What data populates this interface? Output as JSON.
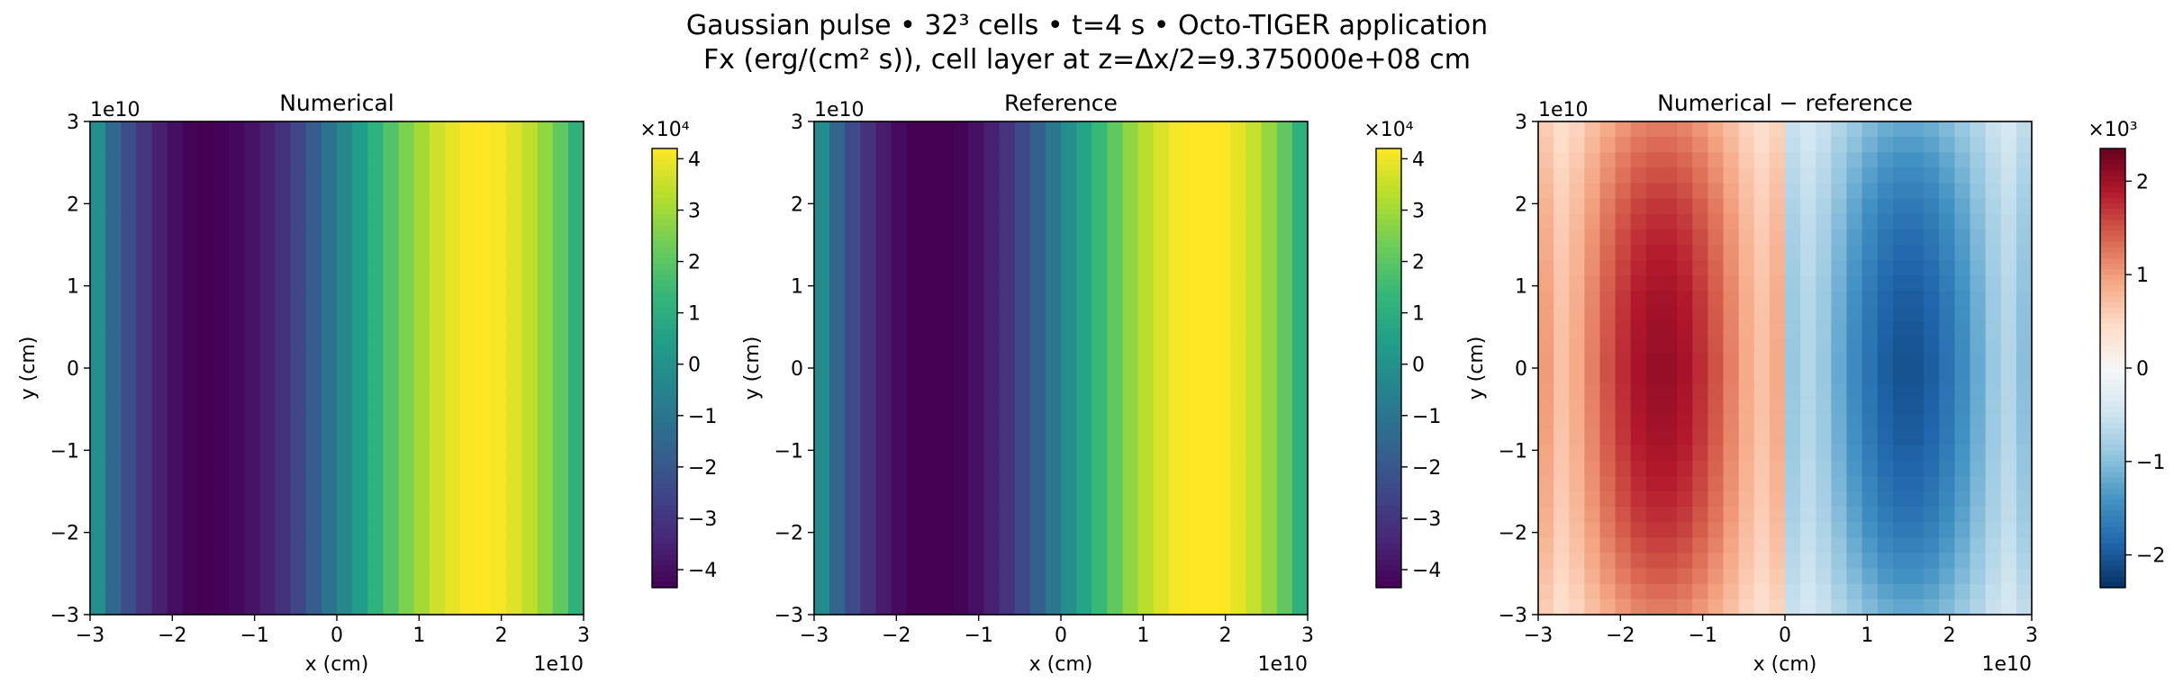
{
  "figure": {
    "title_line1": "Gaussian pulse • 32³ cells • t=4 s • Octo-TIGER application",
    "title_line2": "Fx (erg/(cm² s)), cell layer at z=Δx/2=9.375000e+08 cm"
  },
  "chart_data": [
    {
      "type": "heatmap",
      "title": "Numerical",
      "xlabel": "x (cm)",
      "ylabel": "y (cm)",
      "x_offset_label": "1e10",
      "y_offset_label": "1e10",
      "xlim": [
        -3,
        3
      ],
      "ylim": [
        -3,
        3
      ],
      "x_ticks": [
        -3,
        -2,
        -1,
        0,
        1,
        2,
        3
      ],
      "y_ticks": [
        -3,
        -2,
        -1,
        0,
        1,
        2,
        3
      ],
      "x_tick_labels": [
        "−3",
        "−2",
        "−1",
        "0",
        "1",
        "2",
        "3"
      ],
      "y_tick_labels": [
        "−3",
        "−2",
        "−1",
        "0",
        "1",
        "2",
        "3"
      ],
      "grid": "32x32",
      "colormap": "viridis",
      "colorbar": {
        "range": [
          -4.35,
          4.2
        ],
        "ticks": [
          -4,
          -3,
          -2,
          -1,
          0,
          1,
          2,
          3,
          4
        ],
        "tick_labels": [
          "−4",
          "−3",
          "−2",
          "−1",
          "0",
          "1",
          "2",
          "3",
          "4"
        ],
        "scale_label": "×10⁴"
      },
      "column_values": [
        -0.1,
        -1.5,
        -2.3,
        -3.0,
        -3.6,
        -4.0,
        -4.25,
        -4.35,
        -4.3,
        -4.15,
        -3.9,
        -3.55,
        -3.1,
        -2.5,
        -1.85,
        -1.1,
        -0.35,
        0.4,
        1.15,
        1.85,
        2.5,
        3.05,
        3.55,
        3.9,
        4.15,
        4.2,
        4.1,
        3.8,
        3.4,
        2.8,
        2.1,
        1.1
      ]
    },
    {
      "type": "heatmap",
      "title": "Reference",
      "xlabel": "x (cm)",
      "ylabel": "y (cm)",
      "x_offset_label": "1e10",
      "y_offset_label": "1e10",
      "xlim": [
        -3,
        3
      ],
      "ylim": [
        -3,
        3
      ],
      "x_ticks": [
        -3,
        -2,
        -1,
        0,
        1,
        2,
        3
      ],
      "y_ticks": [
        -3,
        -2,
        -1,
        0,
        1,
        2,
        3
      ],
      "x_tick_labels": [
        "−3",
        "−2",
        "−1",
        "0",
        "1",
        "2",
        "3"
      ],
      "y_tick_labels": [
        "−3",
        "−2",
        "−1",
        "0",
        "1",
        "2",
        "3"
      ],
      "grid": "32x32",
      "colormap": "viridis",
      "colorbar": {
        "range": [
          -4.35,
          4.2
        ],
        "ticks": [
          -4,
          -3,
          -2,
          -1,
          0,
          1,
          2,
          3,
          4
        ],
        "tick_labels": [
          "−4",
          "−3",
          "−2",
          "−1",
          "0",
          "1",
          "2",
          "3",
          "4"
        ],
        "scale_label": "×10⁴"
      },
      "column_values": [
        -0.2,
        -1.6,
        -2.4,
        -3.1,
        -3.7,
        -4.1,
        -4.35,
        -4.45,
        -4.4,
        -4.25,
        -3.95,
        -3.55,
        -3.05,
        -2.45,
        -1.75,
        -0.95,
        -0.15,
        0.65,
        1.4,
        2.1,
        2.75,
        3.3,
        3.75,
        4.1,
        4.3,
        4.35,
        4.2,
        3.9,
        3.45,
        2.85,
        2.1,
        1.1
      ]
    },
    {
      "type": "heatmap",
      "title": "Numerical − reference",
      "xlabel": "x (cm)",
      "ylabel": "y (cm)",
      "x_offset_label": "1e10",
      "y_offset_label": "1e10",
      "xlim": [
        -3,
        3
      ],
      "ylim": [
        -3,
        3
      ],
      "x_ticks": [
        -3,
        -2,
        -1,
        0,
        1,
        2,
        3
      ],
      "y_ticks": [
        -3,
        -2,
        -1,
        0,
        1,
        2,
        3
      ],
      "x_tick_labels": [
        "−3",
        "−2",
        "−1",
        "0",
        "1",
        "2",
        "3"
      ],
      "y_tick_labels": [
        "−3",
        "−2",
        "−1",
        "0",
        "1",
        "2",
        "3"
      ],
      "grid": "32x32",
      "colormap": "RdBu_r",
      "colorbar": {
        "range": [
          -2.35,
          2.35
        ],
        "ticks": [
          -2,
          -1,
          0,
          1,
          2
        ],
        "tick_labels": [
          "−2",
          "−1",
          "0",
          "1",
          "2"
        ],
        "scale_label": "×10³"
      },
      "column_values": [
        1.0,
        0.7,
        0.9,
        1.2,
        1.5,
        1.75,
        1.95,
        2.05,
        2.05,
        1.95,
        1.75,
        1.5,
        1.2,
        0.9,
        0.7,
        0.9,
        -0.9,
        -0.7,
        -0.9,
        -1.2,
        -1.5,
        -1.75,
        -1.95,
        -2.05,
        -2.05,
        -1.95,
        -1.75,
        -1.5,
        -1.2,
        -0.9,
        -0.7,
        -1.0
      ],
      "row_profile": [
        0.6,
        0.65,
        0.7,
        0.74,
        0.78,
        0.82,
        0.85,
        0.88,
        0.9,
        0.92,
        0.94,
        0.96,
        0.97,
        0.98,
        0.99,
        1.0,
        1.0,
        0.99,
        0.98,
        0.97,
        0.96,
        0.94,
        0.92,
        0.9,
        0.88,
        0.85,
        0.82,
        0.78,
        0.74,
        0.7,
        0.65,
        0.6
      ]
    }
  ]
}
